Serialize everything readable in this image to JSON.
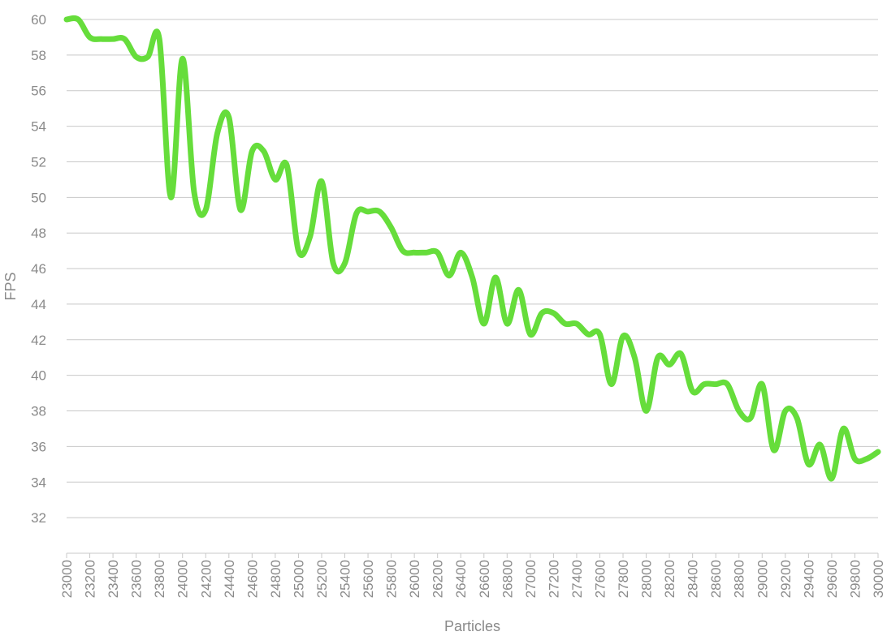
{
  "chart_data": {
    "type": "line",
    "title": "",
    "xlabel": "Particles",
    "ylabel": "FPS",
    "xlim": [
      23000,
      30000
    ],
    "ylim": [
      30,
      60
    ],
    "y_ticks": [
      32,
      34,
      36,
      38,
      40,
      42,
      44,
      46,
      48,
      50,
      52,
      54,
      56,
      58,
      60
    ],
    "x_ticks": [
      23000,
      23200,
      23400,
      23600,
      23800,
      24000,
      24200,
      24400,
      24600,
      24800,
      25000,
      25200,
      25400,
      25600,
      25800,
      26000,
      26200,
      26400,
      26600,
      26800,
      27000,
      27200,
      27400,
      27600,
      27800,
      28000,
      28200,
      28400,
      28600,
      28800,
      29000,
      29200,
      29400,
      29600,
      29800,
      30000
    ],
    "grid": "horizontal",
    "legend": "none",
    "series": [
      {
        "color": "#66dd3b",
        "x": [
          23000,
          23100,
          23200,
          23300,
          23400,
          23500,
          23600,
          23700,
          23800,
          23900,
          24000,
          24100,
          24200,
          24300,
          24400,
          24500,
          24600,
          24700,
          24800,
          24900,
          25000,
          25100,
          25200,
          25300,
          25400,
          25500,
          25600,
          25700,
          25800,
          25900,
          26000,
          26100,
          26200,
          26300,
          26400,
          26500,
          26600,
          26700,
          26800,
          26900,
          27000,
          27100,
          27200,
          27300,
          27400,
          27500,
          27600,
          27700,
          27800,
          27900,
          28000,
          28100,
          28200,
          28300,
          28400,
          28500,
          28600,
          28700,
          28800,
          28900,
          29000,
          29100,
          29200,
          29300,
          29400,
          29500,
          29600,
          29700,
          29800,
          29900,
          30000
        ],
        "values": [
          60.0,
          60.0,
          59.0,
          58.9,
          58.9,
          58.9,
          57.9,
          57.9,
          58.9,
          50.0,
          57.8,
          50.3,
          49.3,
          53.6,
          54.5,
          49.3,
          52.6,
          52.6,
          51.0,
          51.8,
          47.0,
          47.8,
          50.9,
          46.3,
          46.3,
          49.1,
          49.2,
          49.2,
          48.3,
          47.0,
          46.9,
          46.9,
          46.9,
          45.6,
          46.9,
          45.5,
          42.9,
          45.5,
          42.9,
          44.8,
          42.3,
          43.5,
          43.5,
          42.9,
          42.9,
          42.3,
          42.3,
          39.5,
          42.2,
          41.0,
          38.0,
          41.0,
          40.6,
          41.2,
          39.1,
          39.5,
          39.5,
          39.5,
          38.0,
          37.6,
          39.5,
          35.8,
          38.0,
          37.6,
          35.0,
          36.1,
          34.2,
          37.0,
          35.3,
          35.3,
          35.7
        ]
      }
    ]
  }
}
